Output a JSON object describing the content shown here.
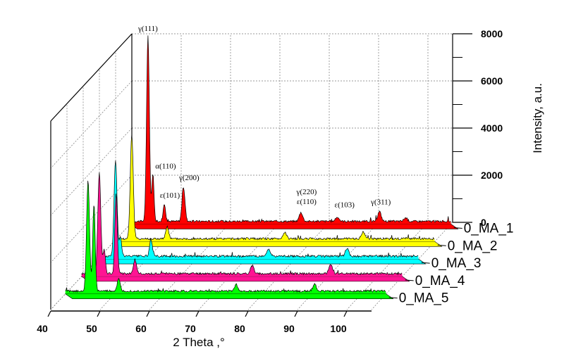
{
  "chart_data": {
    "type": "area",
    "layout": "3d-waterfall",
    "xlabel": "2 Theta ,°",
    "ylabel": "Intensity, a.u.",
    "xticks": [
      40,
      50,
      60,
      70,
      80,
      90,
      100
    ],
    "xlim": [
      40,
      105
    ],
    "yticks": [
      0,
      2000,
      4000,
      6000,
      8000
    ],
    "ylim": [
      0,
      8000
    ],
    "grid": true,
    "series": [
      {
        "name": "0_MA_1",
        "color": "#ff0000",
        "baseline": 120,
        "peaks": [
          {
            "x": 43.6,
            "y": 7900,
            "w": 0.28
          },
          {
            "x": 44.6,
            "y": 2000,
            "w": 0.22
          },
          {
            "x": 46.9,
            "y": 700,
            "w": 0.25
          },
          {
            "x": 50.8,
            "y": 1450,
            "w": 0.3
          },
          {
            "x": 74.6,
            "y": 380,
            "w": 0.35
          },
          {
            "x": 82.0,
            "y": 180,
            "w": 0.35
          },
          {
            "x": 90.5,
            "y": 420,
            "w": 0.35
          },
          {
            "x": 95.8,
            "y": 150,
            "w": 0.35
          }
        ],
        "annotations": [
          {
            "x": 43.6,
            "y": 7900,
            "text": "γ(111)"
          },
          {
            "x": 44.6,
            "y": 2000,
            "text": "α(110)"
          },
          {
            "x": 50.8,
            "y": 1450,
            "text": "γ(200)"
          },
          {
            "x": 46.9,
            "y": 700,
            "text": "ε(101)"
          },
          {
            "x": 74.6,
            "y": 380,
            "text": "γ(220)"
          },
          {
            "x": 74.6,
            "y": 380,
            "text": "ε(110)"
          },
          {
            "x": 82.0,
            "y": 180,
            "text": "ε(103)"
          },
          {
            "x": 90.5,
            "y": 420,
            "text": "γ(311)"
          }
        ]
      },
      {
        "name": "0_MA_2",
        "color": "#ffff00",
        "baseline": 120,
        "peaks": [
          {
            "x": 43.6,
            "y": 4450,
            "w": 0.3
          },
          {
            "x": 50.8,
            "y": 500,
            "w": 0.3
          },
          {
            "x": 74.6,
            "y": 280,
            "w": 0.35
          },
          {
            "x": 90.5,
            "y": 300,
            "w": 0.35
          }
        ]
      },
      {
        "name": "0_MA_3",
        "color": "#00ffff",
        "baseline": 120,
        "peaks": [
          {
            "x": 43.6,
            "y": 4100,
            "w": 0.3
          },
          {
            "x": 44.6,
            "y": 800,
            "w": 0.25
          },
          {
            "x": 50.8,
            "y": 650,
            "w": 0.3
          },
          {
            "x": 74.6,
            "y": 300,
            "w": 0.35
          },
          {
            "x": 90.5,
            "y": 320,
            "w": 0.35
          }
        ]
      },
      {
        "name": "0_MA_4",
        "color": "#ff1493",
        "baseline": 120,
        "peaks": [
          {
            "x": 43.6,
            "y": 4300,
            "w": 0.3
          },
          {
            "x": 44.6,
            "y": 1000,
            "w": 0.25
          },
          {
            "x": 47.0,
            "y": 3400,
            "w": 0.25
          },
          {
            "x": 50.8,
            "y": 600,
            "w": 0.3
          },
          {
            "x": 74.6,
            "y": 350,
            "w": 0.35
          },
          {
            "x": 90.5,
            "y": 380,
            "w": 0.35
          }
        ]
      },
      {
        "name": "0_MA_5",
        "color": "#00ff00",
        "baseline": 120,
        "peaks": [
          {
            "x": 44.6,
            "y": 4700,
            "w": 0.3
          },
          {
            "x": 45.8,
            "y": 3700,
            "w": 0.25
          },
          {
            "x": 50.8,
            "y": 500,
            "w": 0.3
          },
          {
            "x": 74.6,
            "y": 280,
            "w": 0.35
          },
          {
            "x": 90.5,
            "y": 300,
            "w": 0.35
          }
        ]
      }
    ]
  }
}
